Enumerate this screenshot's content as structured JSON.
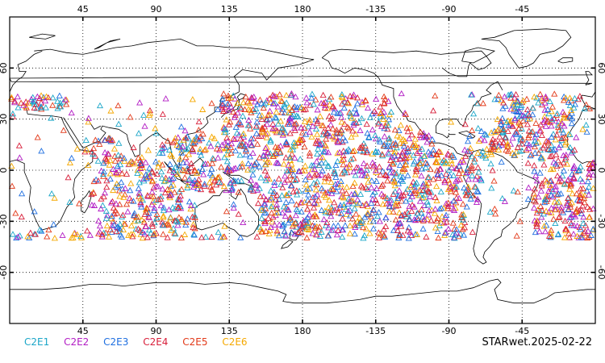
{
  "map": {
    "projection": "equirectangular",
    "lon_range": [
      0,
      360
    ],
    "lat_range": [
      -90,
      90
    ],
    "grid": "dotted",
    "lon_ticks": [
      "45",
      "90",
      "135",
      "180",
      "-135",
      "-90",
      "-45"
    ],
    "lat_ticks": [
      "60",
      "30",
      "0",
      "-30",
      "-60"
    ],
    "marker": "open-triangle",
    "obs_lat_band": [
      -40,
      45
    ]
  },
  "legend": [
    {
      "label": "C2E1",
      "color": "#1ba6c8"
    },
    {
      "label": "C2E2",
      "color": "#b21cc4"
    },
    {
      "label": "C2E3",
      "color": "#1f6fe0"
    },
    {
      "label": "C2E4",
      "color": "#d81f3a"
    },
    {
      "label": "C2E5",
      "color": "#e23a1a"
    },
    {
      "label": "C2E6",
      "color": "#f5a800"
    }
  ],
  "footer": {
    "label": "STARwet.2025-02-22"
  }
}
